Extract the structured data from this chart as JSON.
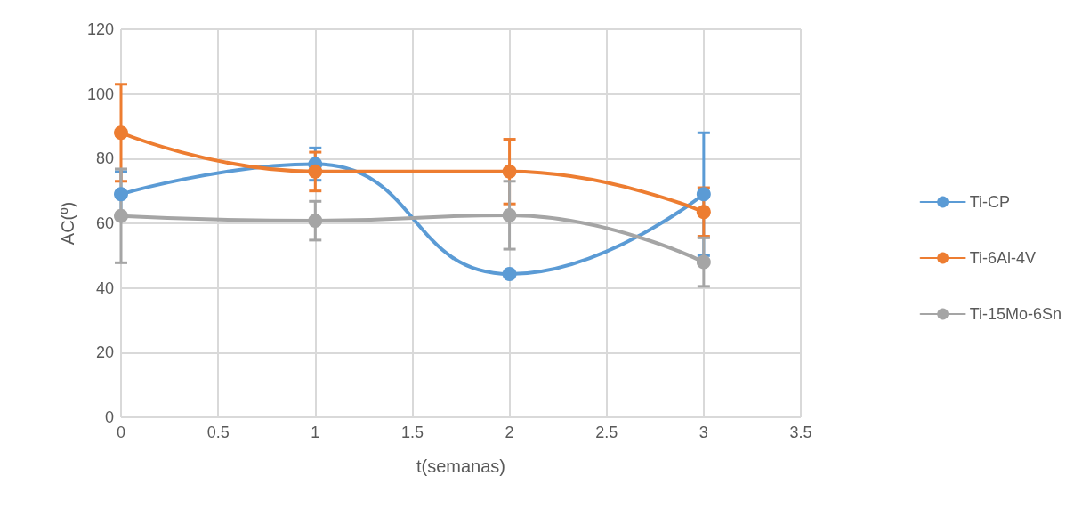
{
  "chart_data": {
    "type": "line",
    "xlabel": "t(semanas)",
    "ylabel": "AC(º)",
    "x": [
      0,
      1,
      2,
      3
    ],
    "xlim": [
      0,
      3.5
    ],
    "xticks": [
      0,
      0.5,
      1,
      1.5,
      2,
      2.5,
      3,
      3.5
    ],
    "ylim": [
      0,
      120
    ],
    "yticks": [
      0,
      20,
      40,
      60,
      80,
      100,
      120
    ],
    "grid": true,
    "legend": "right",
    "marker": "circle",
    "line_style": "solid",
    "series": [
      {
        "name": "Ti-CP",
        "color": "#5b9bd5",
        "values": [
          69,
          78.3,
          44.3,
          69
        ],
        "errors": [
          7,
          5,
          null,
          19
        ]
      },
      {
        "name": "Ti-6Al-4V",
        "color": "#ed7d31",
        "values": [
          88,
          76,
          76,
          63.5
        ],
        "errors": [
          15,
          6,
          10,
          7.5
        ]
      },
      {
        "name": "Ti-15Mo-6Sn",
        "color": "#a5a5a5",
        "values": [
          62.3,
          60.8,
          62.5,
          48
        ],
        "errors": [
          14.5,
          6,
          10.5,
          7.5
        ]
      }
    ]
  }
}
